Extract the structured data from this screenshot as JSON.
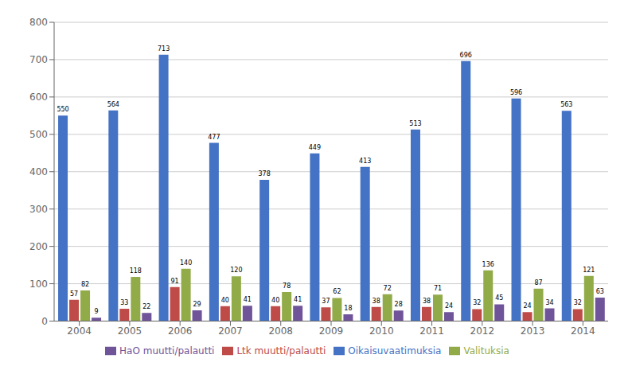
{
  "chart_data": {
    "type": "bar",
    "categories": [
      "2004",
      "2005",
      "2006",
      "2007",
      "2008",
      "2009",
      "2010",
      "2011",
      "2012",
      "2013",
      "2014"
    ],
    "series": [
      {
        "name": "Oikaisuvaatimuksia",
        "color": "#4472C4",
        "values": [
          550,
          564,
          713,
          477,
          378,
          449,
          413,
          513,
          696,
          596,
          563
        ]
      },
      {
        "name": "Ltk muutti/palautti",
        "color": "#BE4B48",
        "values": [
          57,
          33,
          91,
          40,
          40,
          37,
          38,
          38,
          32,
          24,
          32
        ]
      },
      {
        "name": "Valituksia",
        "color": "#92AB49",
        "values": [
          82,
          118,
          140,
          120,
          78,
          62,
          72,
          71,
          136,
          87,
          121
        ]
      },
      {
        "name": "HaO muutti/palautti",
        "color": "#6F5499",
        "values": [
          9,
          22,
          29,
          41,
          41,
          18,
          28,
          24,
          45,
          34,
          63
        ]
      }
    ],
    "ylim": [
      0,
      800
    ],
    "yticks": [
      0,
      100,
      200,
      300,
      400,
      500,
      600,
      700,
      800
    ],
    "grid": true,
    "legend": "bottom",
    "data_labels": true
  }
}
